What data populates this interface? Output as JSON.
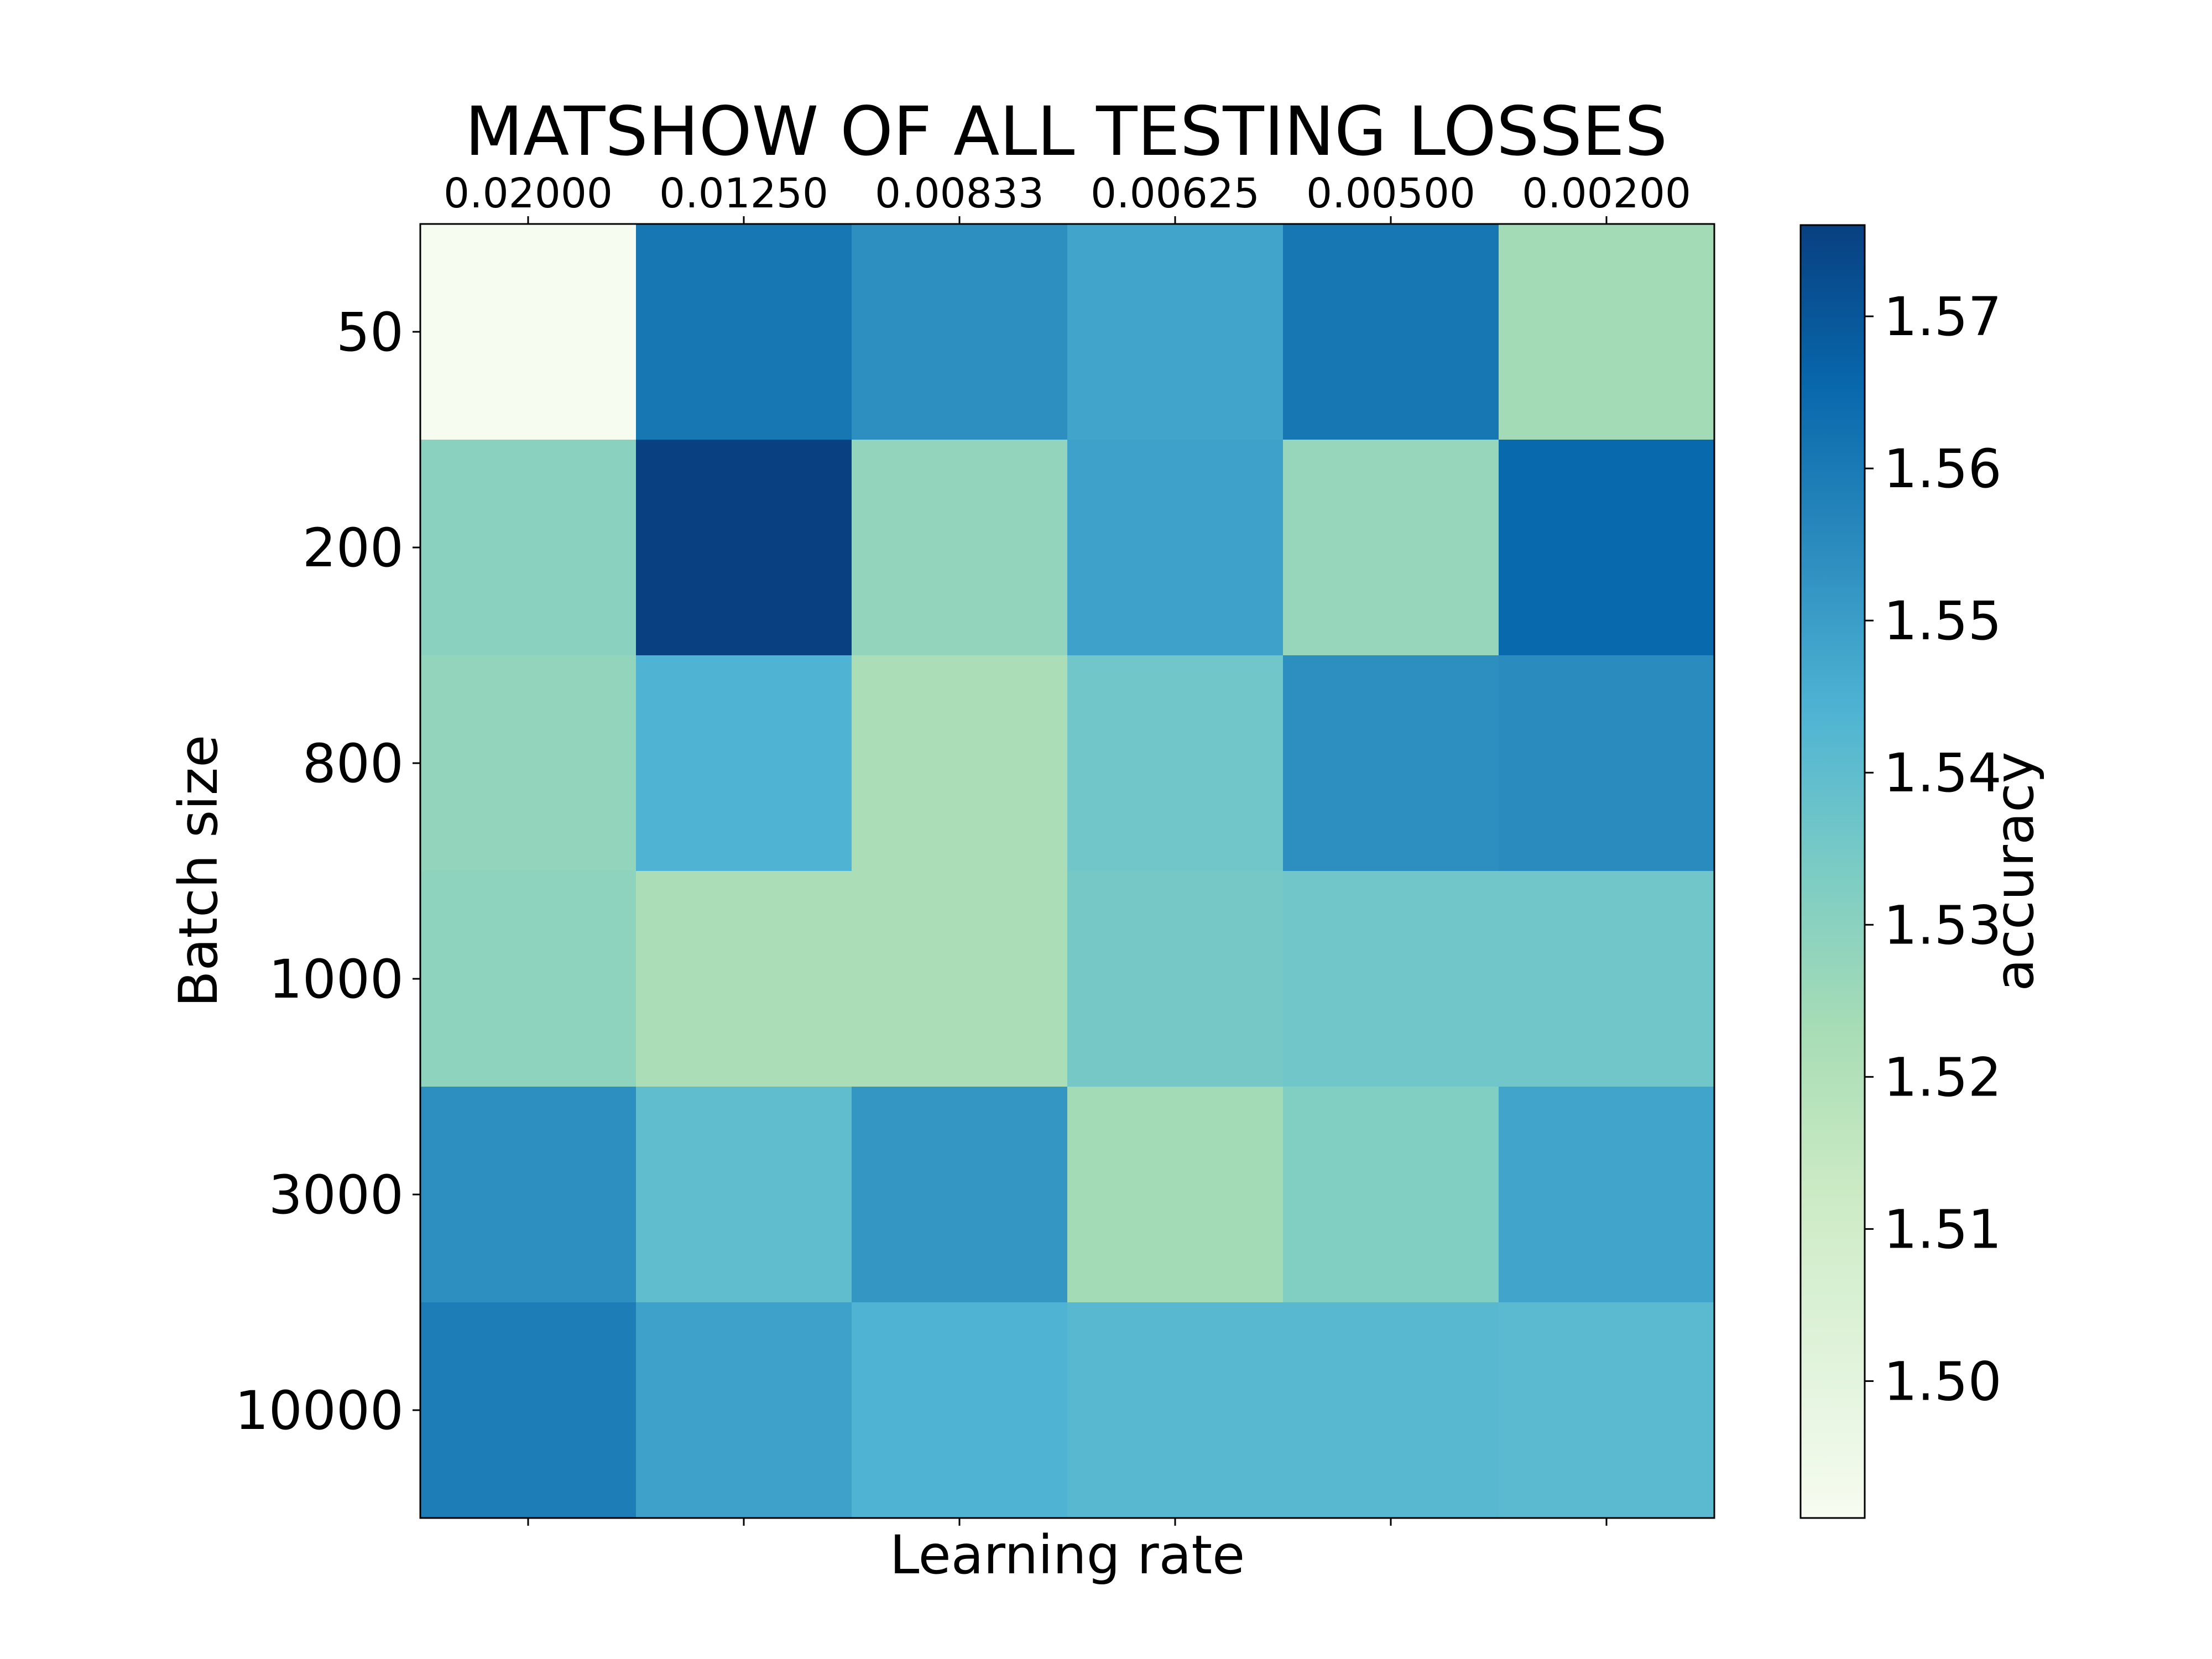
{
  "chart_data": {
    "type": "heatmap",
    "title": "MATSHOW OF ALL TESTING LOSSES",
    "xlabel": "Learning rate",
    "ylabel": "Batch size",
    "x_categories": [
      "0.02000",
      "0.01250",
      "0.00833",
      "0.00625",
      "0.00500",
      "0.00200"
    ],
    "y_categories": [
      "50",
      "200",
      "800",
      "1000",
      "3000",
      "10000"
    ],
    "values": [
      [
        1.491,
        1.561,
        1.554,
        1.548,
        1.561,
        1.524
      ],
      [
        1.53,
        1.576,
        1.528,
        1.549,
        1.527,
        1.565
      ],
      [
        1.528,
        1.544,
        1.522,
        1.536,
        1.554,
        1.555
      ],
      [
        1.529,
        1.522,
        1.522,
        1.535,
        1.536,
        1.536
      ],
      [
        1.554,
        1.54,
        1.552,
        1.524,
        1.532,
        1.548
      ],
      [
        1.559,
        1.549,
        1.544,
        1.542,
        1.542,
        1.541
      ]
    ],
    "colormap": "GnBu",
    "colorbar": {
      "label": "accuracy",
      "min": 1.491,
      "max": 1.576,
      "ticks": [
        "1.50",
        "1.51",
        "1.52",
        "1.53",
        "1.54",
        "1.55",
        "1.56",
        "1.57"
      ]
    },
    "x_tick_position": "top",
    "grid": false
  }
}
